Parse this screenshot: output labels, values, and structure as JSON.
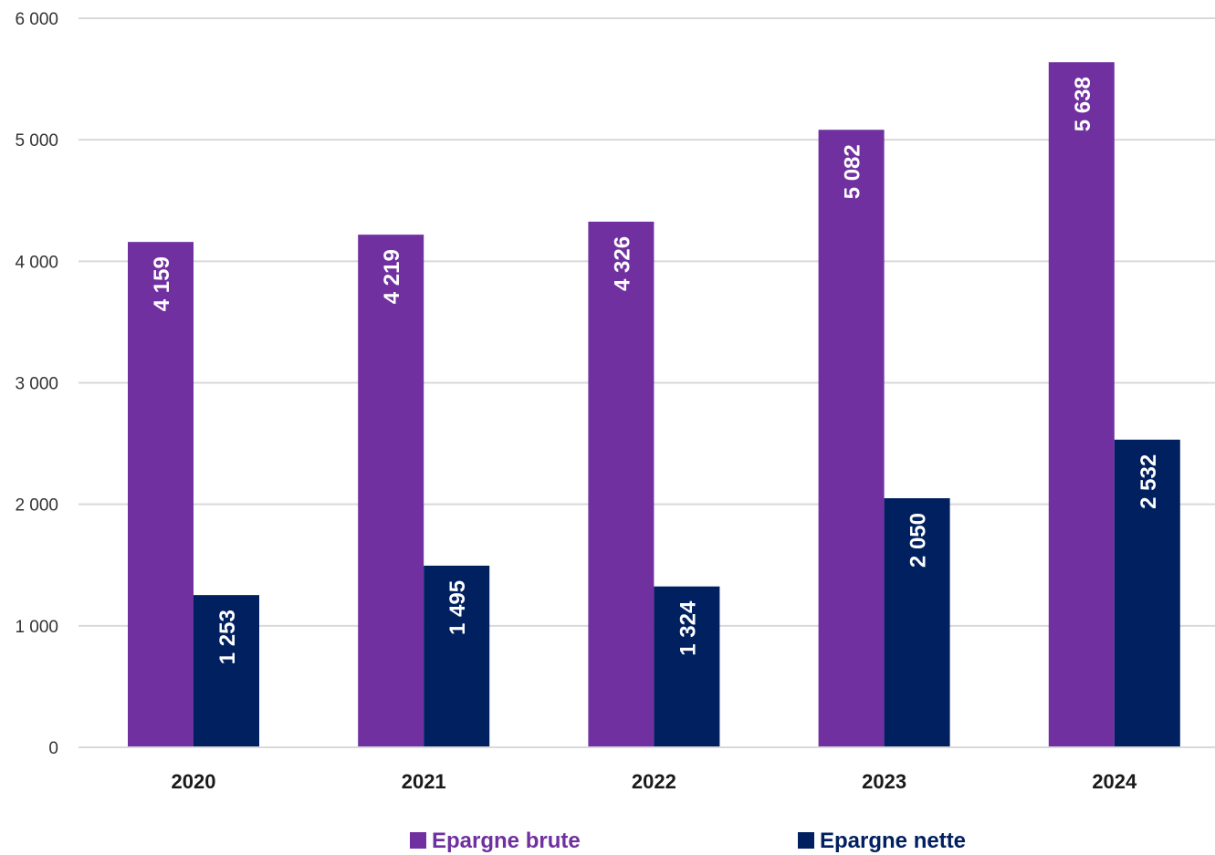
{
  "chart_data": {
    "type": "bar",
    "categories": [
      "2020",
      "2021",
      "2022",
      "2023",
      "2024"
    ],
    "series": [
      {
        "name": "Epargne brute",
        "color": "#7030a0",
        "values": [
          4159,
          4219,
          4326,
          5082,
          5638
        ],
        "labels": [
          "4 159",
          "4 219",
          "4 326",
          "5 082",
          "5 638"
        ]
      },
      {
        "name": "Epargne nette",
        "color": "#002060",
        "values": [
          1253,
          1495,
          1324,
          2050,
          2532
        ],
        "labels": [
          "1 253",
          "1 495",
          "1 324",
          "2 050",
          "2 532"
        ]
      }
    ],
    "y_ticks": [
      {
        "value": 0,
        "label": "0"
      },
      {
        "value": 1000,
        "label": "1 000"
      },
      {
        "value": 2000,
        "label": "2 000"
      },
      {
        "value": 3000,
        "label": "3 000"
      },
      {
        "value": 4000,
        "label": "4 000"
      },
      {
        "value": 5000,
        "label": "5 000"
      },
      {
        "value": 6000,
        "label": "6 000"
      }
    ],
    "ylim": [
      0,
      6000
    ],
    "grid": true,
    "legend_position": "bottom"
  }
}
